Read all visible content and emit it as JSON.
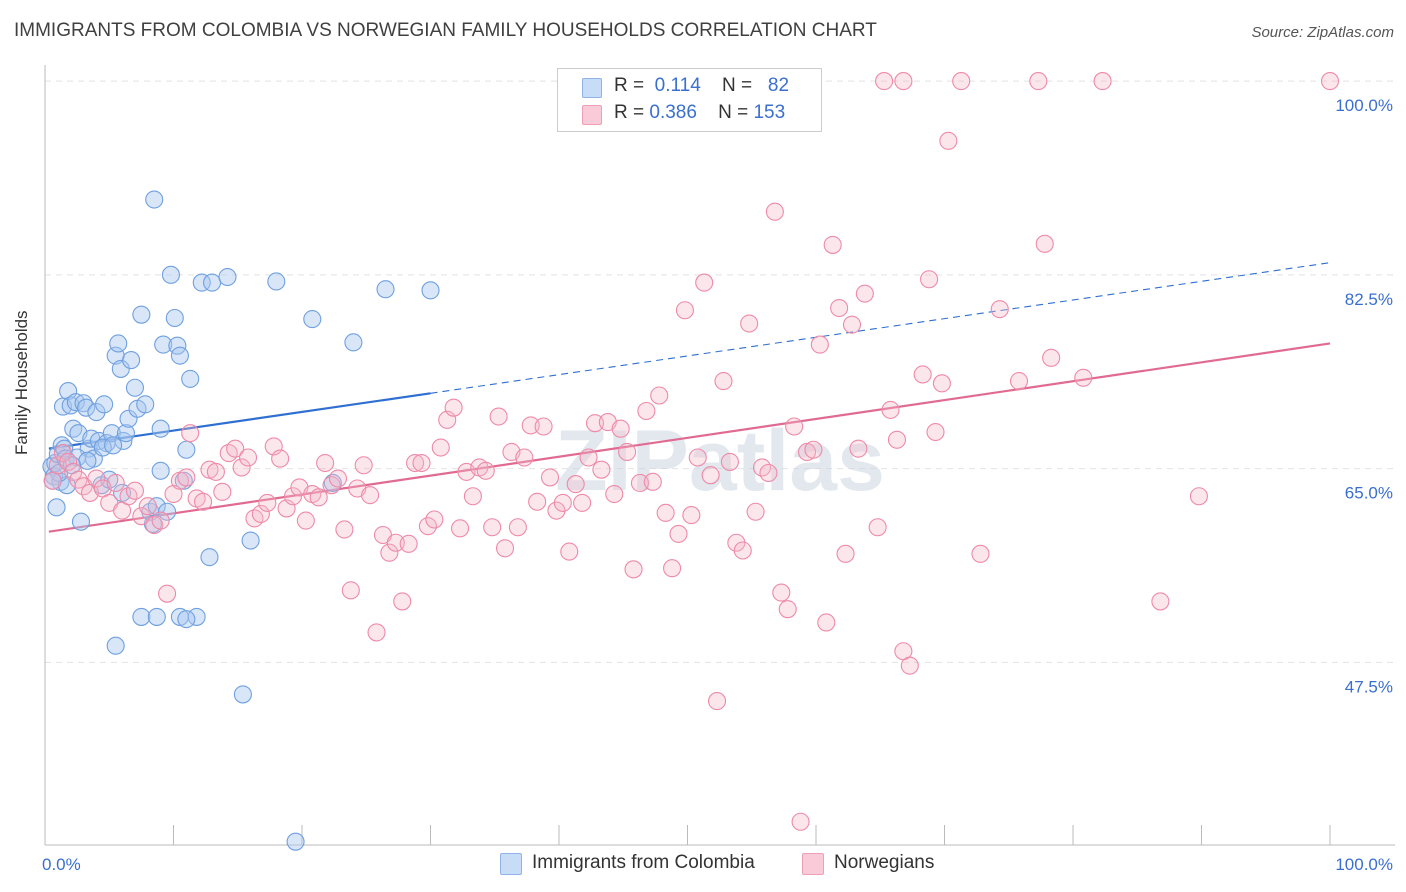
{
  "title": "IMMIGRANTS FROM COLOMBIA VS NORWEGIAN FAMILY HOUSEHOLDS CORRELATION CHART",
  "source": "Source: ZipAtlas.com",
  "watermark": "ZIPatlas",
  "legend": {
    "rows": [
      {
        "r_label": "R =",
        "r_value": "0.114",
        "n_label": "N =",
        "n_value": "82",
        "color": "#a8c8f0"
      },
      {
        "r_label": "R =",
        "r_value": "0.386",
        "n_label": "N =",
        "n_value": "153",
        "color": "#f4b6c8"
      }
    ]
  },
  "bottom_legend": [
    {
      "label": "Immigrants from Colombia",
      "color": "#a8c8f0"
    },
    {
      "label": "Norwegians",
      "color": "#f4b6c8"
    }
  ],
  "chart_data": {
    "type": "scatter",
    "title": "IMMIGRANTS FROM COLOMBIA VS NORWEGIAN FAMILY HOUSEHOLDS CORRELATION CHART",
    "xlabel": "",
    "ylabel": "Family Households",
    "xlim": [
      0,
      100
    ],
    "ylim": [
      31,
      101
    ],
    "x_tick_labels": [
      "0.0%",
      "100.0%"
    ],
    "y_ticks": [
      47.5,
      65.0,
      82.5,
      100.0
    ],
    "y_tick_labels": [
      "47.5%",
      "65.0%",
      "82.5%",
      "100.0%"
    ],
    "grid": true,
    "legend_position": "top-center",
    "series": [
      {
        "name": "Immigrants from Colombia",
        "color": "#6fa0e0",
        "fill": "rgba(168,200,240,0.45)",
        "trend": {
          "x_start": 0.3,
          "x_end": 30,
          "y_start": 66.8,
          "y_end": 71.8,
          "dashed_to_x": 100,
          "dashed_end_y": 83.6,
          "color": "#2f6fd1"
        },
        "points": [
          [
            0.5,
            65.2
          ],
          [
            0.7,
            64.3
          ],
          [
            0.8,
            65.5
          ],
          [
            0.9,
            61.5
          ],
          [
            1.0,
            66.3
          ],
          [
            1.2,
            63.8
          ],
          [
            1.3,
            67.1
          ],
          [
            1.4,
            70.6
          ],
          [
            1.5,
            66.8
          ],
          [
            1.6,
            65.9
          ],
          [
            1.7,
            63.5
          ],
          [
            1.8,
            72.0
          ],
          [
            2.0,
            70.7
          ],
          [
            2.2,
            68.6
          ],
          [
            2.4,
            71.0
          ],
          [
            2.6,
            68.2
          ],
          [
            2.8,
            60.2
          ],
          [
            3.0,
            70.9
          ],
          [
            3.2,
            70.5
          ],
          [
            3.4,
            66.8
          ],
          [
            3.6,
            67.7
          ],
          [
            3.8,
            65.9
          ],
          [
            4.0,
            70.1
          ],
          [
            4.2,
            67.5
          ],
          [
            4.4,
            63.5
          ],
          [
            4.6,
            70.8
          ],
          [
            4.8,
            67.3
          ],
          [
            5.0,
            64.0
          ],
          [
            5.2,
            68.2
          ],
          [
            5.5,
            75.2
          ],
          [
            5.7,
            76.3
          ],
          [
            5.9,
            74.0
          ],
          [
            6.1,
            67.5
          ],
          [
            6.3,
            68.2
          ],
          [
            6.5,
            69.5
          ],
          [
            6.7,
            74.8
          ],
          [
            7.0,
            72.3
          ],
          [
            7.2,
            70.4
          ],
          [
            7.5,
            78.9
          ],
          [
            7.8,
            70.8
          ],
          [
            8.2,
            61.1
          ],
          [
            8.4,
            60.0
          ],
          [
            8.7,
            61.6
          ],
          [
            9.0,
            68.6
          ],
          [
            9.2,
            76.2
          ],
          [
            9.5,
            61.1
          ],
          [
            9.8,
            82.5
          ],
          [
            10.1,
            78.6
          ],
          [
            10.3,
            76.1
          ],
          [
            10.5,
            75.2
          ],
          [
            10.8,
            63.9
          ],
          [
            11.0,
            66.7
          ],
          [
            11.3,
            73.1
          ],
          [
            11.8,
            51.6
          ],
          [
            12.2,
            81.8
          ],
          [
            13.0,
            81.8
          ],
          [
            14.2,
            82.3
          ],
          [
            16.0,
            58.5
          ],
          [
            18.0,
            81.9
          ],
          [
            20.8,
            78.5
          ],
          [
            22.4,
            63.7
          ],
          [
            24.0,
            76.4
          ],
          [
            26.5,
            81.2
          ],
          [
            30.0,
            81.1
          ],
          [
            8.5,
            89.3
          ],
          [
            5.5,
            49.0
          ],
          [
            7.5,
            51.6
          ],
          [
            8.7,
            51.6
          ],
          [
            10.5,
            51.6
          ],
          [
            11.0,
            51.4
          ],
          [
            12.8,
            57.0
          ],
          [
            15.4,
            44.6
          ],
          [
            19.5,
            31.3
          ],
          [
            4.5,
            66.9
          ],
          [
            2.5,
            66.0
          ],
          [
            1.1,
            64.6
          ],
          [
            3.3,
            65.7
          ],
          [
            6.0,
            62.8
          ],
          [
            9.0,
            64.8
          ],
          [
            5.3,
            67.1
          ],
          [
            2.1,
            65.3
          ],
          [
            0.6,
            63.9
          ]
        ]
      },
      {
        "name": "Norwegians",
        "color": "#ee8aa8",
        "fill": "rgba(244,182,200,0.35)",
        "trend": {
          "x_start": 0.3,
          "x_end": 100,
          "y_start": 59.3,
          "y_end": 76.3,
          "color": "#e06a92"
        },
        "points": [
          [
            0.6,
            63.9
          ],
          [
            1.0,
            65.3
          ],
          [
            1.4,
            66.4
          ],
          [
            1.8,
            65.6
          ],
          [
            2.2,
            64.7
          ],
          [
            2.6,
            64.0
          ],
          [
            3.0,
            63.4
          ],
          [
            3.5,
            62.8
          ],
          [
            4.0,
            64.1
          ],
          [
            4.5,
            63.2
          ],
          [
            5.0,
            61.9
          ],
          [
            5.5,
            63.7
          ],
          [
            6.0,
            61.2
          ],
          [
            6.5,
            62.5
          ],
          [
            7.0,
            63.0
          ],
          [
            7.5,
            60.7
          ],
          [
            8.0,
            61.6
          ],
          [
            8.5,
            59.9
          ],
          [
            9.0,
            60.3
          ],
          [
            9.5,
            53.7
          ],
          [
            10.0,
            62.7
          ],
          [
            10.5,
            63.9
          ],
          [
            11.0,
            64.2
          ],
          [
            11.3,
            68.2
          ],
          [
            11.8,
            62.3
          ],
          [
            12.3,
            62.0
          ],
          [
            12.8,
            64.9
          ],
          [
            13.3,
            64.7
          ],
          [
            13.8,
            62.9
          ],
          [
            14.3,
            66.4
          ],
          [
            14.8,
            66.8
          ],
          [
            15.3,
            65.1
          ],
          [
            15.8,
            66.0
          ],
          [
            16.3,
            60.5
          ],
          [
            16.8,
            60.9
          ],
          [
            17.3,
            61.9
          ],
          [
            17.8,
            67.0
          ],
          [
            18.3,
            65.9
          ],
          [
            18.8,
            61.4
          ],
          [
            19.3,
            62.5
          ],
          [
            19.8,
            63.3
          ],
          [
            20.3,
            60.3
          ],
          [
            20.8,
            62.7
          ],
          [
            21.3,
            62.4
          ],
          [
            21.8,
            65.5
          ],
          [
            22.3,
            63.5
          ],
          [
            22.8,
            64.1
          ],
          [
            23.3,
            59.5
          ],
          [
            23.8,
            54.0
          ],
          [
            24.3,
            63.2
          ],
          [
            24.8,
            65.3
          ],
          [
            25.3,
            62.6
          ],
          [
            25.8,
            50.2
          ],
          [
            26.3,
            59.0
          ],
          [
            26.8,
            57.4
          ],
          [
            27.3,
            58.3
          ],
          [
            27.8,
            53.0
          ],
          [
            28.3,
            58.2
          ],
          [
            28.8,
            65.5
          ],
          [
            29.3,
            65.5
          ],
          [
            29.8,
            59.8
          ],
          [
            30.3,
            60.4
          ],
          [
            30.8,
            66.9
          ],
          [
            31.3,
            69.4
          ],
          [
            31.8,
            70.5
          ],
          [
            32.3,
            59.6
          ],
          [
            32.8,
            64.7
          ],
          [
            33.3,
            62.5
          ],
          [
            33.8,
            65.1
          ],
          [
            34.3,
            64.8
          ],
          [
            34.8,
            59.7
          ],
          [
            35.3,
            69.7
          ],
          [
            35.8,
            57.8
          ],
          [
            36.3,
            66.5
          ],
          [
            36.8,
            59.7
          ],
          [
            37.3,
            66.0
          ],
          [
            37.8,
            68.9
          ],
          [
            38.3,
            62.0
          ],
          [
            38.8,
            68.8
          ],
          [
            39.3,
            64.2
          ],
          [
            39.8,
            61.2
          ],
          [
            40.3,
            61.9
          ],
          [
            40.8,
            57.5
          ],
          [
            41.3,
            63.6
          ],
          [
            41.8,
            61.9
          ],
          [
            42.3,
            66.0
          ],
          [
            42.8,
            69.1
          ],
          [
            43.3,
            64.9
          ],
          [
            43.8,
            69.2
          ],
          [
            44.3,
            62.7
          ],
          [
            44.8,
            68.6
          ],
          [
            45.3,
            66.5
          ],
          [
            45.8,
            55.9
          ],
          [
            46.3,
            63.7
          ],
          [
            46.8,
            70.2
          ],
          [
            47.3,
            63.8
          ],
          [
            47.8,
            71.6
          ],
          [
            48.3,
            61.0
          ],
          [
            48.8,
            56.0
          ],
          [
            49.3,
            59.1
          ],
          [
            49.8,
            79.3
          ],
          [
            50.3,
            60.8
          ],
          [
            50.8,
            66.0
          ],
          [
            51.3,
            81.8
          ],
          [
            51.8,
            64.4
          ],
          [
            52.3,
            44.0
          ],
          [
            52.8,
            72.9
          ],
          [
            53.3,
            65.6
          ],
          [
            53.8,
            58.3
          ],
          [
            54.3,
            57.6
          ],
          [
            54.8,
            78.1
          ],
          [
            55.3,
            61.1
          ],
          [
            55.8,
            65.1
          ],
          [
            56.3,
            64.6
          ],
          [
            56.8,
            88.2
          ],
          [
            57.3,
            53.8
          ],
          [
            57.8,
            52.3
          ],
          [
            58.3,
            68.8
          ],
          [
            58.8,
            33.1
          ],
          [
            59.3,
            66.5
          ],
          [
            59.8,
            66.7
          ],
          [
            60.3,
            76.2
          ],
          [
            60.8,
            51.1
          ],
          [
            61.3,
            85.2
          ],
          [
            61.8,
            79.5
          ],
          [
            62.3,
            57.3
          ],
          [
            62.8,
            78.0
          ],
          [
            63.3,
            66.8
          ],
          [
            63.8,
            80.8
          ],
          [
            64.8,
            59.7
          ],
          [
            65.8,
            70.3
          ],
          [
            66.3,
            67.6
          ],
          [
            66.8,
            48.5
          ],
          [
            67.3,
            47.2
          ],
          [
            68.3,
            73.5
          ],
          [
            68.8,
            82.1
          ],
          [
            69.3,
            68.3
          ],
          [
            69.8,
            72.7
          ],
          [
            70.3,
            94.6
          ],
          [
            72.8,
            57.3
          ],
          [
            74.3,
            79.4
          ],
          [
            75.8,
            72.9
          ],
          [
            77.8,
            85.3
          ],
          [
            78.3,
            75.0
          ],
          [
            80.8,
            73.2
          ],
          [
            86.8,
            53.0
          ],
          [
            89.8,
            62.5
          ],
          [
            65.3,
            100.0
          ],
          [
            66.8,
            100.0
          ],
          [
            71.3,
            100.0
          ],
          [
            77.3,
            100.0
          ],
          [
            82.3,
            100.0
          ],
          [
            100.0,
            100.0
          ]
        ]
      }
    ]
  }
}
